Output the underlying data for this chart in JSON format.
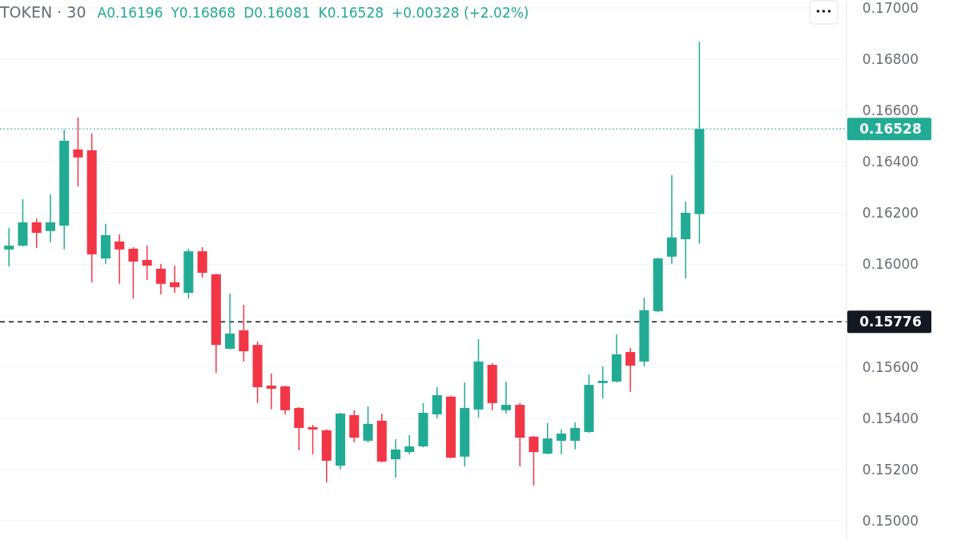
{
  "chart_data": {
    "type": "candlestick",
    "title": "TOKEN · 30",
    "annotations": [
      "A0.16196",
      "Y0.16868",
      "D0.16081",
      "K0.16528",
      "+0.00328 (+2.02%)"
    ],
    "categories": [
      null,
      null,
      null,
      null,
      null,
      null,
      null,
      null,
      null,
      null,
      null,
      null,
      null,
      null,
      null,
      null,
      null,
      null,
      null,
      null,
      null,
      null,
      null,
      null,
      null,
      null,
      null,
      null,
      null,
      null,
      null,
      null,
      null,
      null,
      null,
      null,
      null,
      null,
      null,
      null,
      null,
      null,
      null,
      null,
      null,
      null,
      null,
      null,
      null,
      null,
      null,
      null,
      null,
      null,
      null,
      null,
      null,
      null,
      null,
      null,
      null
    ],
    "ohlc": [
      [
        0.16058,
        0.16142,
        0.15992,
        0.16073
      ],
      [
        0.16073,
        0.16254,
        0.1607,
        0.16164
      ],
      [
        0.16164,
        0.16179,
        0.16064,
        0.16123
      ],
      [
        0.1613,
        0.16273,
        0.16086,
        0.16164
      ],
      [
        0.16151,
        0.16525,
        0.16058,
        0.16482
      ],
      [
        0.16448,
        0.16573,
        0.16304,
        0.16417
      ],
      [
        0.16445,
        0.1651,
        0.1593,
        0.16039
      ],
      [
        0.16023,
        0.16158,
        0.16002,
        0.16114
      ],
      [
        0.16089,
        0.16117,
        0.15924,
        0.16058
      ],
      [
        0.16061,
        0.16067,
        0.15867,
        0.16011
      ],
      [
        0.16017,
        0.16073,
        0.15939,
        0.15995
      ],
      [
        0.15983,
        0.16002,
        0.15883,
        0.15924
      ],
      [
        0.1593,
        0.15995,
        0.15889,
        0.15911
      ],
      [
        0.15889,
        0.16061,
        0.15867,
        0.16051
      ],
      [
        0.16051,
        0.16067,
        0.15949,
        0.15967
      ],
      [
        0.15961,
        0.15964,
        0.15577,
        0.15686
      ],
      [
        0.15671,
        0.15886,
        0.15668,
        0.1573
      ],
      [
        0.15743,
        0.15842,
        0.15621,
        0.15661
      ],
      [
        0.15686,
        0.15699,
        0.15459,
        0.15521
      ],
      [
        0.15527,
        0.15574,
        0.15434,
        0.15515
      ],
      [
        0.15524,
        0.15527,
        0.15415,
        0.15431
      ],
      [
        0.1544,
        0.15443,
        0.15275,
        0.15362
      ],
      [
        0.15365,
        0.15374,
        0.15259,
        0.15356
      ],
      [
        0.15353,
        0.15356,
        0.1515,
        0.15234
      ],
      [
        0.15215,
        0.15421,
        0.152,
        0.15418
      ],
      [
        0.15412,
        0.15431,
        0.15306,
        0.15324
      ],
      [
        0.15312,
        0.15446,
        0.15306,
        0.15378
      ],
      [
        0.1539,
        0.15418,
        0.15228,
        0.15231
      ],
      [
        0.1524,
        0.15318,
        0.15168,
        0.15278
      ],
      [
        0.15268,
        0.15334,
        0.15259,
        0.1529
      ],
      [
        0.1529,
        0.15459,
        0.15287,
        0.15421
      ],
      [
        0.15415,
        0.15521,
        0.15399,
        0.1549
      ],
      [
        0.15484,
        0.15487,
        0.15243,
        0.15246
      ],
      [
        0.1525,
        0.1554,
        0.15212,
        0.1544
      ],
      [
        0.15434,
        0.15708,
        0.15402,
        0.15621
      ],
      [
        0.15608,
        0.15615,
        0.15431,
        0.15459
      ],
      [
        0.15431,
        0.15543,
        0.15418,
        0.15452
      ],
      [
        0.15452,
        0.15459,
        0.15212,
        0.15324
      ],
      [
        0.15328,
        0.15331,
        0.15137,
        0.15268
      ],
      [
        0.15262,
        0.15381,
        0.15259,
        0.15321
      ],
      [
        0.15312,
        0.15356,
        0.15259,
        0.1534
      ],
      [
        0.15312,
        0.15384,
        0.15278,
        0.15362
      ],
      [
        0.15346,
        0.15571,
        0.15343,
        0.1553
      ],
      [
        0.15537,
        0.15602,
        0.15477,
        0.15546
      ],
      [
        0.15543,
        0.15727,
        0.1554,
        0.15649
      ],
      [
        0.15658,
        0.15674,
        0.15502,
        0.15605
      ],
      [
        0.15621,
        0.1587,
        0.15602,
        0.15821
      ],
      [
        0.15817,
        0.16026,
        0.15814,
        0.16023
      ],
      [
        0.1603,
        0.16348,
        0.16002,
        0.16105
      ],
      [
        0.16098,
        0.16245,
        0.15945,
        0.16201
      ],
      [
        0.16196,
        0.16868,
        0.16081,
        0.16528
      ],
      null,
      null,
      null,
      null,
      null,
      null,
      null,
      null,
      null,
      null
    ],
    "colors": [
      "#22ab94",
      "#22ab94",
      "#f23645",
      "#22ab94",
      "#22ab94",
      "#f23645",
      "#f23645",
      "#22ab94",
      "#f23645",
      "#f23645",
      "#f23645",
      "#f23645",
      "#f23645",
      "#22ab94",
      "#f23645",
      "#f23645",
      "#22ab94",
      "#f23645",
      "#f23645",
      "#f23645",
      "#f23645",
      "#f23645",
      "#f23645",
      "#f23645",
      "#22ab94",
      "#f23645",
      "#22ab94",
      "#f23645",
      "#22ab94",
      "#22ab94",
      "#22ab94",
      "#22ab94",
      "#f23645",
      "#22ab94",
      "#22ab94",
      "#f23645",
      "#22ab94",
      "#f23645",
      "#f23645",
      "#22ab94",
      "#22ab94",
      "#22ab94",
      "#22ab94",
      "#22ab94",
      "#22ab94",
      "#f23645",
      "#22ab94",
      "#22ab94",
      "#22ab94",
      "#22ab94",
      "#22ab94",
      null,
      null,
      null,
      null,
      null,
      null,
      null,
      null,
      null,
      null
    ],
    "ylim": [
      0.14925,
      0.17031
    ],
    "yticks": [
      {
        "value": 0.15,
        "label": "0.15000"
      },
      {
        "value": 0.152,
        "label": "0.15200"
      },
      {
        "value": 0.154,
        "label": "0.15400"
      },
      {
        "value": 0.156,
        "label": "0.15600"
      },
      {
        "value": 0.158,
        "label": null
      },
      {
        "value": 0.16,
        "label": "0.16000"
      },
      {
        "value": 0.162,
        "label": "0.16200"
      },
      {
        "value": 0.164,
        "label": "0.16400"
      },
      {
        "value": 0.166,
        "label": "0.16600"
      },
      {
        "value": 0.168,
        "label": "0.16800"
      },
      {
        "value": 0.17,
        "label": "0.17000"
      }
    ],
    "grid": "y",
    "ref_lines": [
      {
        "axis": "y",
        "value": 0.16528,
        "label": "0.16528",
        "color": "#22ab94",
        "line_style": "dotted"
      },
      {
        "axis": "y",
        "value": 0.15776,
        "label": "0.15776",
        "color": "#131722",
        "line_style": "dashed"
      }
    ]
  }
}
